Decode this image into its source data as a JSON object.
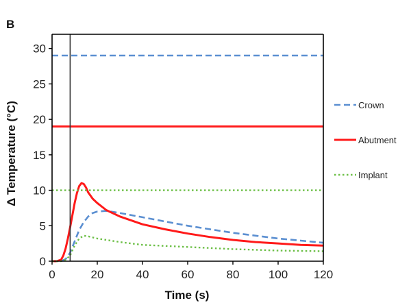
{
  "panel_label": "B",
  "colors": {
    "crown": "#5b8fd1",
    "abutment": "#ff1a1a",
    "implant": "#6cbf46",
    "axis": "#000000",
    "marker": "#333333"
  },
  "chart_data": {
    "type": "line",
    "xlabel": "Time (s)",
    "ylabel": "Δ Temperature  (°C)",
    "xlim": [
      0,
      120
    ],
    "ylim": [
      0,
      32
    ],
    "xticks": [
      0,
      20,
      40,
      60,
      80,
      100,
      120
    ],
    "yticks": [
      0,
      5,
      10,
      15,
      20,
      25,
      30
    ],
    "grid": false,
    "legend_position": "right",
    "vertical_marker_x": 8,
    "series": [
      {
        "name": "Crown",
        "style": "dashed",
        "x": [
          0,
          4,
          6,
          8,
          10,
          12,
          14,
          16,
          18,
          20,
          24,
          30,
          40,
          50,
          60,
          70,
          80,
          90,
          100,
          110,
          120
        ],
        "y": [
          0,
          0,
          0.3,
          1.2,
          2.8,
          4.4,
          5.5,
          6.3,
          6.8,
          7.0,
          7.1,
          6.8,
          6.2,
          5.6,
          5.0,
          4.5,
          4.0,
          3.6,
          3.2,
          2.9,
          2.6
        ]
      },
      {
        "name": "Abutment",
        "style": "solid",
        "x": [
          0,
          2,
          4,
          5,
          6,
          7,
          8,
          9,
          10,
          11,
          12,
          13,
          14,
          15,
          16,
          18,
          20,
          24,
          30,
          40,
          50,
          60,
          70,
          80,
          90,
          100,
          110,
          120
        ],
        "y": [
          0,
          0,
          0.2,
          0.8,
          1.8,
          3.2,
          4.8,
          6.5,
          8.2,
          9.6,
          10.6,
          11.0,
          10.9,
          10.4,
          9.7,
          8.8,
          8.2,
          7.2,
          6.3,
          5.2,
          4.5,
          3.9,
          3.4,
          3.0,
          2.7,
          2.5,
          2.3,
          2.2
        ]
      },
      {
        "name": "Implant",
        "style": "dotted",
        "x": [
          0,
          4,
          6,
          8,
          10,
          12,
          14,
          16,
          20,
          30,
          40,
          60,
          80,
          100,
          120
        ],
        "y": [
          0,
          0,
          0.2,
          0.8,
          2.2,
          3.2,
          3.6,
          3.5,
          3.2,
          2.7,
          2.3,
          2.0,
          1.7,
          1.5,
          1.4
        ]
      },
      {
        "name": "Crown threshold",
        "style": "dashed",
        "x": [
          0,
          120
        ],
        "y": [
          29,
          29
        ]
      },
      {
        "name": "Abutment threshold",
        "style": "solid",
        "x": [
          0,
          120
        ],
        "y": [
          19,
          19
        ]
      },
      {
        "name": "Implant threshold",
        "style": "dotted",
        "x": [
          0,
          120
        ],
        "y": [
          10,
          10
        ]
      }
    ],
    "legend": [
      {
        "label": "Crown",
        "series": "Crown"
      },
      {
        "label": "Abutment",
        "series": "Abutment"
      },
      {
        "label": "Implant",
        "series": "Implant"
      }
    ]
  }
}
